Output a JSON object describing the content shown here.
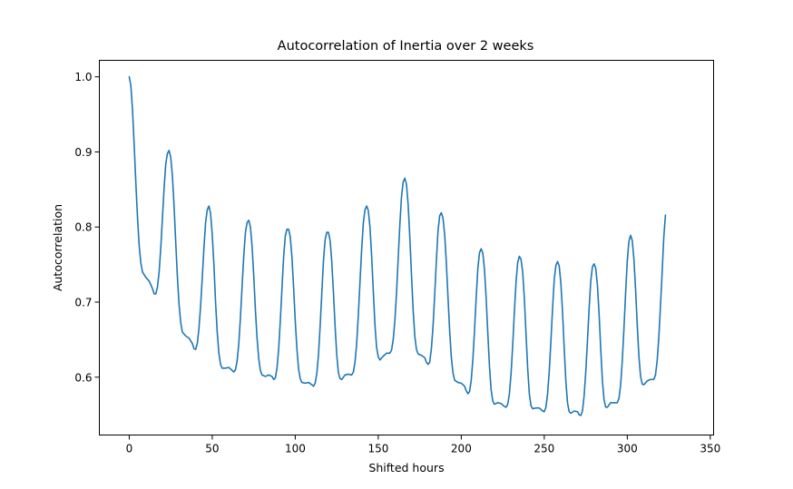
{
  "chart_data": {
    "type": "line",
    "title": "Autocorrelation of Inertia over 2 weeks",
    "xlabel": "Shifted hours",
    "ylabel": "Autocorrelation",
    "xlim": [
      -18,
      352
    ],
    "ylim": [
      0.523,
      1.022
    ],
    "grid": false,
    "xticks": [
      0,
      50,
      100,
      150,
      200,
      250,
      300,
      350
    ],
    "yticks": [
      0.6,
      0.7,
      0.8,
      0.9,
      1.0
    ],
    "ytick_labels": [
      "0.6",
      "0.7",
      "0.8",
      "0.9",
      "1.0"
    ],
    "series": [
      {
        "color": "#1f77b4",
        "points": [
          [
            0,
            1.0
          ],
          [
            1,
            0.988
          ],
          [
            2,
            0.955
          ],
          [
            3,
            0.908
          ],
          [
            4,
            0.858
          ],
          [
            5,
            0.812
          ],
          [
            6,
            0.775
          ],
          [
            7,
            0.752
          ],
          [
            8,
            0.74
          ],
          [
            10,
            0.733
          ],
          [
            12,
            0.728
          ],
          [
            14,
            0.718
          ],
          [
            15,
            0.711
          ],
          [
            16,
            0.711
          ],
          [
            17,
            0.72
          ],
          [
            18,
            0.74
          ],
          [
            19,
            0.772
          ],
          [
            20,
            0.812
          ],
          [
            21,
            0.852
          ],
          [
            22,
            0.884
          ],
          [
            23,
            0.898
          ],
          [
            24,
            0.902
          ],
          [
            25,
            0.893
          ],
          [
            26,
            0.868
          ],
          [
            27,
            0.828
          ],
          [
            28,
            0.78
          ],
          [
            29,
            0.734
          ],
          [
            30,
            0.697
          ],
          [
            31,
            0.673
          ],
          [
            32,
            0.66
          ],
          [
            34,
            0.655
          ],
          [
            36,
            0.652
          ],
          [
            38,
            0.645
          ],
          [
            39,
            0.638
          ],
          [
            40,
            0.637
          ],
          [
            41,
            0.645
          ],
          [
            42,
            0.665
          ],
          [
            43,
            0.695
          ],
          [
            44,
            0.733
          ],
          [
            45,
            0.772
          ],
          [
            46,
            0.806
          ],
          [
            47,
            0.823
          ],
          [
            48,
            0.828
          ],
          [
            49,
            0.818
          ],
          [
            50,
            0.79
          ],
          [
            51,
            0.75
          ],
          [
            52,
            0.7
          ],
          [
            53,
            0.66
          ],
          [
            54,
            0.632
          ],
          [
            55,
            0.617
          ],
          [
            56,
            0.612
          ],
          [
            58,
            0.612
          ],
          [
            60,
            0.613
          ],
          [
            62,
            0.609
          ],
          [
            63,
            0.607
          ],
          [
            64,
            0.61
          ],
          [
            65,
            0.622
          ],
          [
            66,
            0.645
          ],
          [
            67,
            0.68
          ],
          [
            68,
            0.722
          ],
          [
            69,
            0.762
          ],
          [
            70,
            0.793
          ],
          [
            71,
            0.806
          ],
          [
            72,
            0.809
          ],
          [
            73,
            0.8
          ],
          [
            74,
            0.774
          ],
          [
            75,
            0.735
          ],
          [
            76,
            0.69
          ],
          [
            77,
            0.652
          ],
          [
            78,
            0.625
          ],
          [
            79,
            0.609
          ],
          [
            80,
            0.603
          ],
          [
            82,
            0.601
          ],
          [
            84,
            0.603
          ],
          [
            86,
            0.601
          ],
          [
            87,
            0.597
          ],
          [
            88,
            0.599
          ],
          [
            89,
            0.612
          ],
          [
            90,
            0.637
          ],
          [
            91,
            0.675
          ],
          [
            92,
            0.718
          ],
          [
            93,
            0.76
          ],
          [
            94,
            0.788
          ],
          [
            95,
            0.797
          ],
          [
            96,
            0.797
          ],
          [
            97,
            0.787
          ],
          [
            98,
            0.76
          ],
          [
            99,
            0.72
          ],
          [
            100,
            0.675
          ],
          [
            101,
            0.638
          ],
          [
            102,
            0.611
          ],
          [
            103,
            0.598
          ],
          [
            104,
            0.593
          ],
          [
            106,
            0.592
          ],
          [
            108,
            0.593
          ],
          [
            110,
            0.59
          ],
          [
            111,
            0.588
          ],
          [
            112,
            0.592
          ],
          [
            113,
            0.605
          ],
          [
            114,
            0.63
          ],
          [
            115,
            0.668
          ],
          [
            116,
            0.712
          ],
          [
            117,
            0.755
          ],
          [
            118,
            0.783
          ],
          [
            119,
            0.793
          ],
          [
            120,
            0.793
          ],
          [
            121,
            0.782
          ],
          [
            122,
            0.754
          ],
          [
            123,
            0.713
          ],
          [
            124,
            0.668
          ],
          [
            125,
            0.63
          ],
          [
            126,
            0.606
          ],
          [
            127,
            0.598
          ],
          [
            128,
            0.597
          ],
          [
            130,
            0.603
          ],
          [
            132,
            0.604
          ],
          [
            134,
            0.603
          ],
          [
            135,
            0.607
          ],
          [
            136,
            0.62
          ],
          [
            137,
            0.645
          ],
          [
            138,
            0.683
          ],
          [
            139,
            0.727
          ],
          [
            140,
            0.77
          ],
          [
            141,
            0.805
          ],
          [
            142,
            0.823
          ],
          [
            143,
            0.828
          ],
          [
            144,
            0.822
          ],
          [
            145,
            0.8
          ],
          [
            146,
            0.762
          ],
          [
            147,
            0.715
          ],
          [
            148,
            0.67
          ],
          [
            149,
            0.64
          ],
          [
            150,
            0.627
          ],
          [
            151,
            0.623
          ],
          [
            153,
            0.628
          ],
          [
            155,
            0.632
          ],
          [
            157,
            0.632
          ],
          [
            158,
            0.636
          ],
          [
            159,
            0.65
          ],
          [
            160,
            0.675
          ],
          [
            161,
            0.712
          ],
          [
            162,
            0.758
          ],
          [
            163,
            0.803
          ],
          [
            164,
            0.84
          ],
          [
            165,
            0.86
          ],
          [
            166,
            0.865
          ],
          [
            167,
            0.857
          ],
          [
            168,
            0.83
          ],
          [
            169,
            0.787
          ],
          [
            170,
            0.737
          ],
          [
            171,
            0.69
          ],
          [
            172,
            0.655
          ],
          [
            173,
            0.637
          ],
          [
            174,
            0.631
          ],
          [
            176,
            0.629
          ],
          [
            178,
            0.626
          ],
          [
            179,
            0.62
          ],
          [
            180,
            0.617
          ],
          [
            181,
            0.62
          ],
          [
            182,
            0.638
          ],
          [
            183,
            0.668
          ],
          [
            184,
            0.71
          ],
          [
            185,
            0.755
          ],
          [
            186,
            0.795
          ],
          [
            187,
            0.815
          ],
          [
            188,
            0.819
          ],
          [
            189,
            0.812
          ],
          [
            190,
            0.79
          ],
          [
            191,
            0.753
          ],
          [
            192,
            0.707
          ],
          [
            193,
            0.662
          ],
          [
            194,
            0.627
          ],
          [
            195,
            0.606
          ],
          [
            196,
            0.596
          ],
          [
            198,
            0.593
          ],
          [
            200,
            0.592
          ],
          [
            202,
            0.588
          ],
          [
            203,
            0.582
          ],
          [
            204,
            0.578
          ],
          [
            205,
            0.581
          ],
          [
            206,
            0.596
          ],
          [
            207,
            0.624
          ],
          [
            208,
            0.663
          ],
          [
            209,
            0.707
          ],
          [
            210,
            0.745
          ],
          [
            211,
            0.766
          ],
          [
            212,
            0.771
          ],
          [
            213,
            0.765
          ],
          [
            214,
            0.743
          ],
          [
            215,
            0.705
          ],
          [
            216,
            0.658
          ],
          [
            217,
            0.614
          ],
          [
            218,
            0.583
          ],
          [
            219,
            0.568
          ],
          [
            220,
            0.564
          ],
          [
            222,
            0.566
          ],
          [
            224,
            0.565
          ],
          [
            226,
            0.561
          ],
          [
            227,
            0.56
          ],
          [
            228,
            0.564
          ],
          [
            229,
            0.578
          ],
          [
            230,
            0.605
          ],
          [
            231,
            0.643
          ],
          [
            232,
            0.687
          ],
          [
            233,
            0.727
          ],
          [
            234,
            0.753
          ],
          [
            235,
            0.761
          ],
          [
            236,
            0.757
          ],
          [
            237,
            0.74
          ],
          [
            238,
            0.705
          ],
          [
            239,
            0.658
          ],
          [
            240,
            0.612
          ],
          [
            241,
            0.578
          ],
          [
            242,
            0.562
          ],
          [
            243,
            0.558
          ],
          [
            245,
            0.559
          ],
          [
            247,
            0.559
          ],
          [
            249,
            0.555
          ],
          [
            250,
            0.554
          ],
          [
            251,
            0.56
          ],
          [
            252,
            0.578
          ],
          [
            253,
            0.608
          ],
          [
            254,
            0.648
          ],
          [
            255,
            0.692
          ],
          [
            256,
            0.73
          ],
          [
            257,
            0.749
          ],
          [
            258,
            0.754
          ],
          [
            259,
            0.748
          ],
          [
            260,
            0.725
          ],
          [
            261,
            0.687
          ],
          [
            262,
            0.639
          ],
          [
            263,
            0.595
          ],
          [
            264,
            0.566
          ],
          [
            265,
            0.554
          ],
          [
            266,
            0.552
          ],
          [
            268,
            0.555
          ],
          [
            270,
            0.554
          ],
          [
            271,
            0.55
          ],
          [
            272,
            0.549
          ],
          [
            273,
            0.555
          ],
          [
            274,
            0.575
          ],
          [
            275,
            0.607
          ],
          [
            276,
            0.648
          ],
          [
            277,
            0.691
          ],
          [
            278,
            0.728
          ],
          [
            279,
            0.747
          ],
          [
            280,
            0.751
          ],
          [
            281,
            0.745
          ],
          [
            282,
            0.723
          ],
          [
            283,
            0.685
          ],
          [
            284,
            0.638
          ],
          [
            285,
            0.596
          ],
          [
            286,
            0.57
          ],
          [
            287,
            0.56
          ],
          [
            288,
            0.56
          ],
          [
            290,
            0.566
          ],
          [
            292,
            0.566
          ],
          [
            294,
            0.566
          ],
          [
            295,
            0.572
          ],
          [
            296,
            0.59
          ],
          [
            297,
            0.622
          ],
          [
            298,
            0.665
          ],
          [
            299,
            0.712
          ],
          [
            300,
            0.755
          ],
          [
            301,
            0.781
          ],
          [
            302,
            0.789
          ],
          [
            303,
            0.782
          ],
          [
            304,
            0.757
          ],
          [
            305,
            0.717
          ],
          [
            306,
            0.67
          ],
          [
            307,
            0.628
          ],
          [
            308,
            0.601
          ],
          [
            309,
            0.591
          ],
          [
            310,
            0.59
          ],
          [
            312,
            0.595
          ],
          [
            314,
            0.597
          ],
          [
            316,
            0.597
          ],
          [
            317,
            0.603
          ],
          [
            318,
            0.622
          ],
          [
            319,
            0.653
          ],
          [
            320,
            0.695
          ],
          [
            321,
            0.74
          ],
          [
            322,
            0.787
          ],
          [
            323,
            0.816
          ]
        ]
      }
    ]
  }
}
